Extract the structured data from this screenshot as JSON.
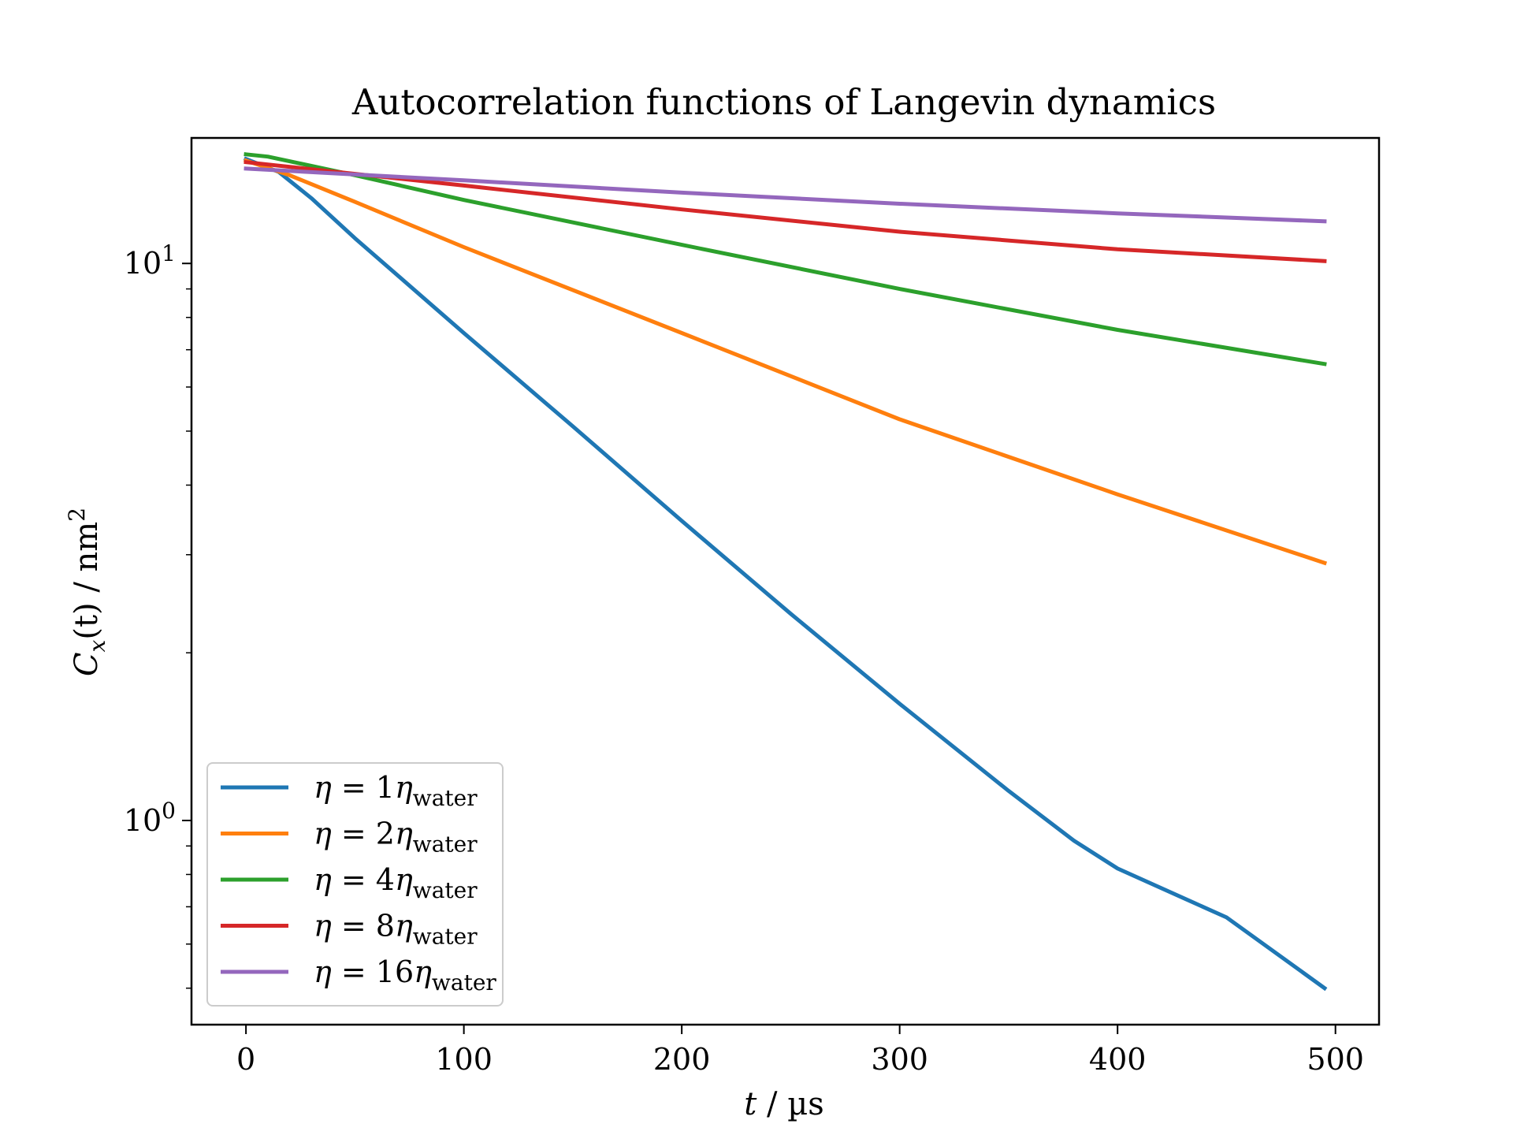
{
  "chart_data": {
    "type": "line",
    "title": "Autocorrelation functions of Langevin dynamics",
    "xlabel": {
      "var": "t",
      "sep": " / ",
      "unit": "µs"
    },
    "ylabel": {
      "var": "C",
      "sub": "x",
      "arg": "(t)",
      "sep": " / ",
      "unit": "nm",
      "sup": "2"
    },
    "yscale": "log",
    "xlim": [
      -25,
      520
    ],
    "ylim": [
      0.43,
      16.8
    ],
    "xticks": [
      0,
      100,
      200,
      300,
      400,
      500
    ],
    "yticks": [
      {
        "value": 10,
        "base": "10",
        "exp": "1"
      },
      {
        "value": 1,
        "base": "10",
        "exp": "0"
      }
    ],
    "grid": false,
    "legend": {
      "position": "lower-left"
    },
    "series": [
      {
        "name": "η = 1η_water",
        "eta": "η",
        "mult": "1",
        "sub": "water",
        "color": "#1f77b4",
        "points": [
          [
            0,
            15.4
          ],
          [
            15,
            14.6
          ],
          [
            30,
            13.1
          ],
          [
            50,
            11.1
          ],
          [
            100,
            7.5
          ],
          [
            150,
            5.1
          ],
          [
            200,
            3.45
          ],
          [
            250,
            2.35
          ],
          [
            300,
            1.62
          ],
          [
            350,
            1.13
          ],
          [
            380,
            0.92
          ],
          [
            400,
            0.82
          ],
          [
            450,
            0.67
          ],
          [
            495,
            0.5
          ]
        ]
      },
      {
        "name": "η = 2η_water",
        "eta": "η",
        "mult": "2",
        "sub": "water",
        "color": "#ff7f0e",
        "points": [
          [
            0,
            15.3
          ],
          [
            20,
            14.4
          ],
          [
            50,
            12.9
          ],
          [
            100,
            10.7
          ],
          [
            200,
            7.5
          ],
          [
            300,
            5.25
          ],
          [
            400,
            3.85
          ],
          [
            495,
            2.9
          ]
        ]
      },
      {
        "name": "η = 4η_water",
        "eta": "η",
        "mult": "4",
        "sub": "water",
        "color": "#2ca02c",
        "points": [
          [
            0,
            15.7
          ],
          [
            10,
            15.55
          ],
          [
            50,
            14.4
          ],
          [
            100,
            13.0
          ],
          [
            200,
            10.8
          ],
          [
            300,
            9.0
          ],
          [
            400,
            7.6
          ],
          [
            495,
            6.6
          ]
        ]
      },
      {
        "name": "η = 8η_water",
        "eta": "η",
        "mult": "8",
        "sub": "water",
        "color": "#d62728",
        "points": [
          [
            0,
            15.2
          ],
          [
            100,
            13.8
          ],
          [
            200,
            12.5
          ],
          [
            300,
            11.4
          ],
          [
            400,
            10.6
          ],
          [
            495,
            10.1
          ]
        ]
      },
      {
        "name": "η = 16η_water",
        "eta": "η",
        "mult": "16",
        "sub": "water",
        "color": "#9467bd",
        "points": [
          [
            0,
            14.8
          ],
          [
            100,
            14.1
          ],
          [
            200,
            13.4
          ],
          [
            300,
            12.8
          ],
          [
            400,
            12.3
          ],
          [
            495,
            11.9
          ]
        ]
      }
    ]
  }
}
